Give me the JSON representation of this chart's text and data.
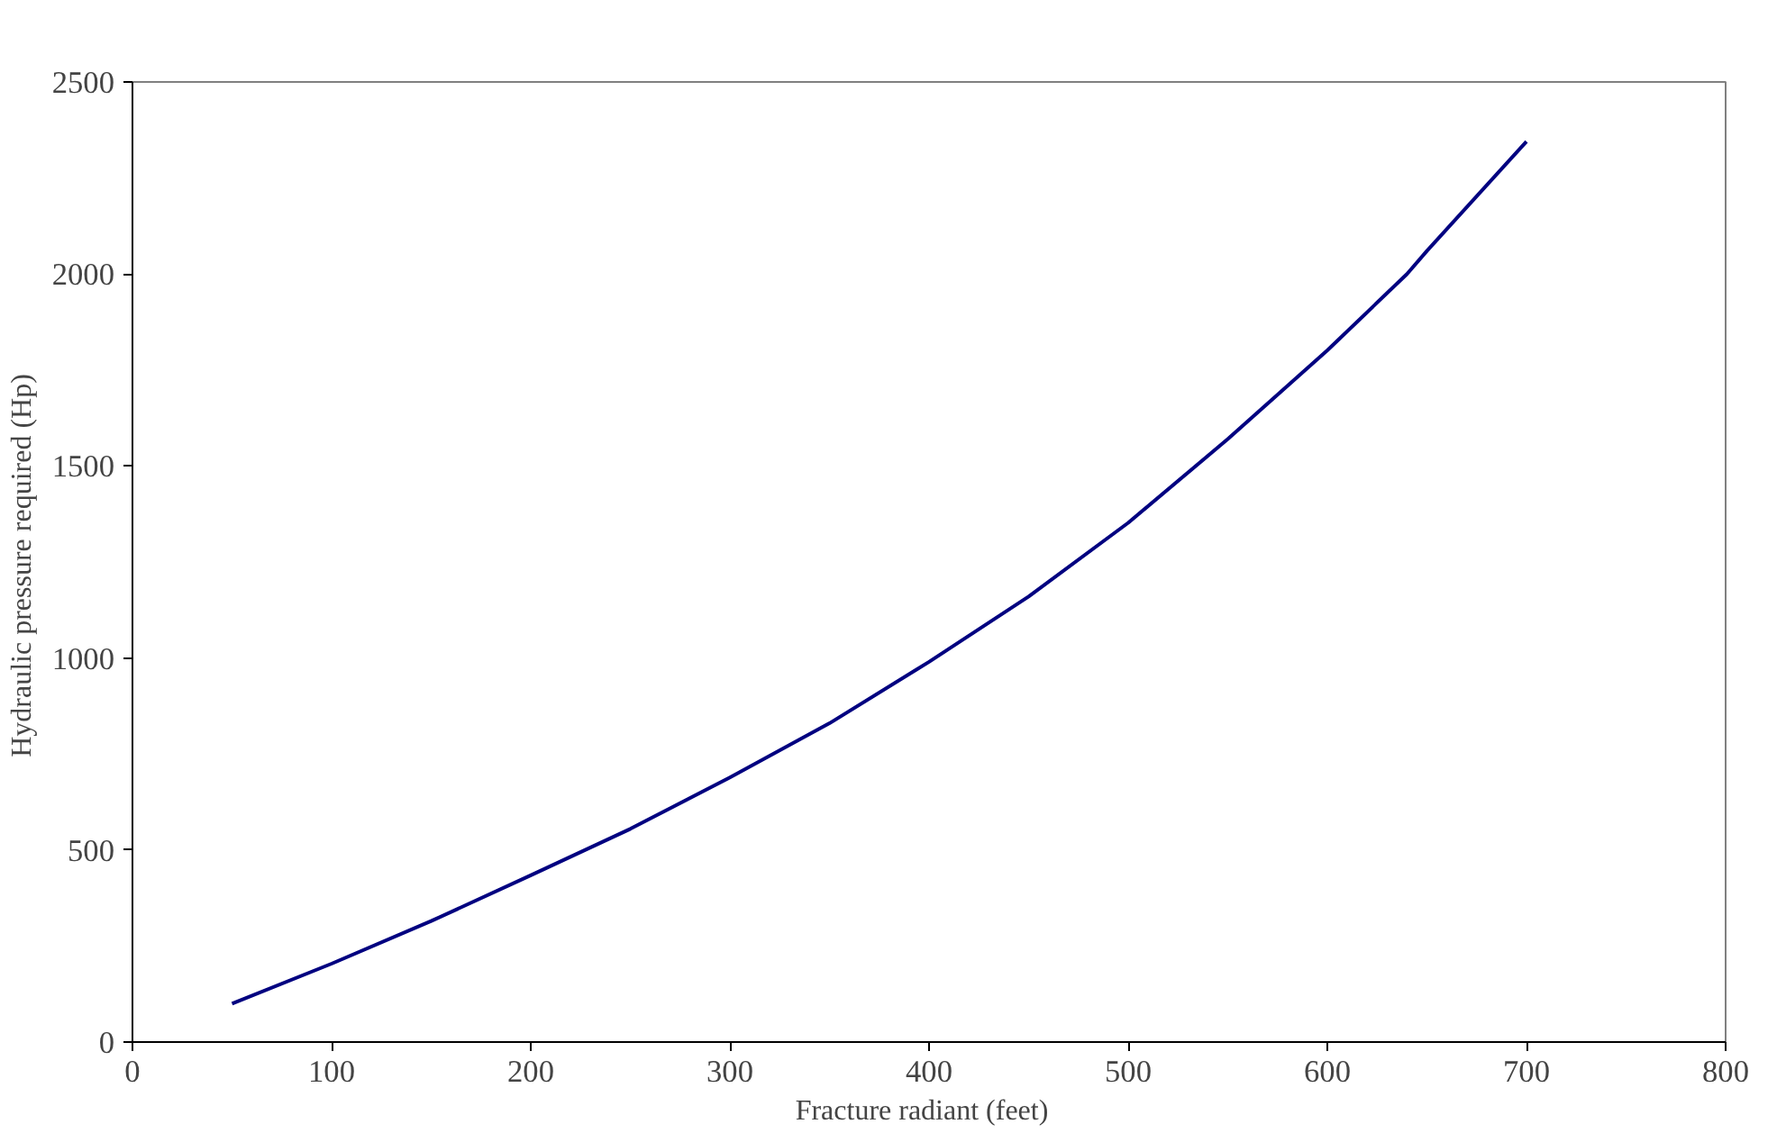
{
  "chart_data": {
    "type": "line",
    "xlabel": "Fracture radiant   (feet)",
    "ylabel": "Hydraulic pressure required  (Hp)",
    "x": [
      50,
      100,
      150,
      200,
      250,
      300,
      350,
      400,
      450,
      500,
      550,
      600,
      640,
      650,
      700
    ],
    "series": [
      {
        "color": "#000080",
        "values": [
          100,
          204,
          315,
          434,
          555,
          689,
          830,
          990,
          1160,
          1352,
          1570,
          1801,
          2000,
          2060,
          2345
        ]
      }
    ],
    "xlim": [
      0,
      800
    ],
    "xticks": [
      0,
      100,
      200,
      300,
      400,
      500,
      600,
      700,
      800
    ],
    "ylim": [
      0,
      2500
    ],
    "yticks": [
      0,
      500,
      1000,
      1500,
      2000,
      2500
    ],
    "grid": false,
    "marker": "none",
    "line_style": "solid"
  }
}
